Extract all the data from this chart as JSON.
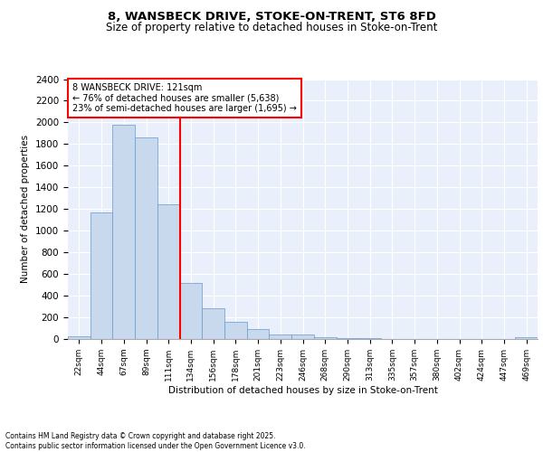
{
  "title1": "8, WANSBECK DRIVE, STOKE-ON-TRENT, ST6 8FD",
  "title2": "Size of property relative to detached houses in Stoke-on-Trent",
  "xlabel": "Distribution of detached houses by size in Stoke-on-Trent",
  "ylabel": "Number of detached properties",
  "bar_labels": [
    "22sqm",
    "44sqm",
    "67sqm",
    "89sqm",
    "111sqm",
    "134sqm",
    "156sqm",
    "178sqm",
    "201sqm",
    "223sqm",
    "246sqm",
    "268sqm",
    "290sqm",
    "313sqm",
    "335sqm",
    "357sqm",
    "380sqm",
    "402sqm",
    "424sqm",
    "447sqm",
    "469sqm"
  ],
  "bar_values": [
    25,
    1170,
    1980,
    1860,
    1240,
    520,
    280,
    155,
    95,
    42,
    38,
    18,
    12,
    5,
    3,
    2,
    2,
    1,
    1,
    1,
    18
  ],
  "bar_color": "#c9d9ed",
  "bar_edge_color": "#6699cc",
  "vline_color": "red",
  "annotation_text": "8 WANSBECK DRIVE: 121sqm\n← 76% of detached houses are smaller (5,638)\n23% of semi-detached houses are larger (1,695) →",
  "annotation_box_color": "white",
  "annotation_box_edge": "red",
  "ylim": [
    0,
    2400
  ],
  "yticks": [
    0,
    200,
    400,
    600,
    800,
    1000,
    1200,
    1400,
    1600,
    1800,
    2000,
    2200,
    2400
  ],
  "background_color": "#eaf0fb",
  "grid_color": "white",
  "footer1": "Contains HM Land Registry data © Crown copyright and database right 2025.",
  "footer2": "Contains public sector information licensed under the Open Government Licence v3.0."
}
